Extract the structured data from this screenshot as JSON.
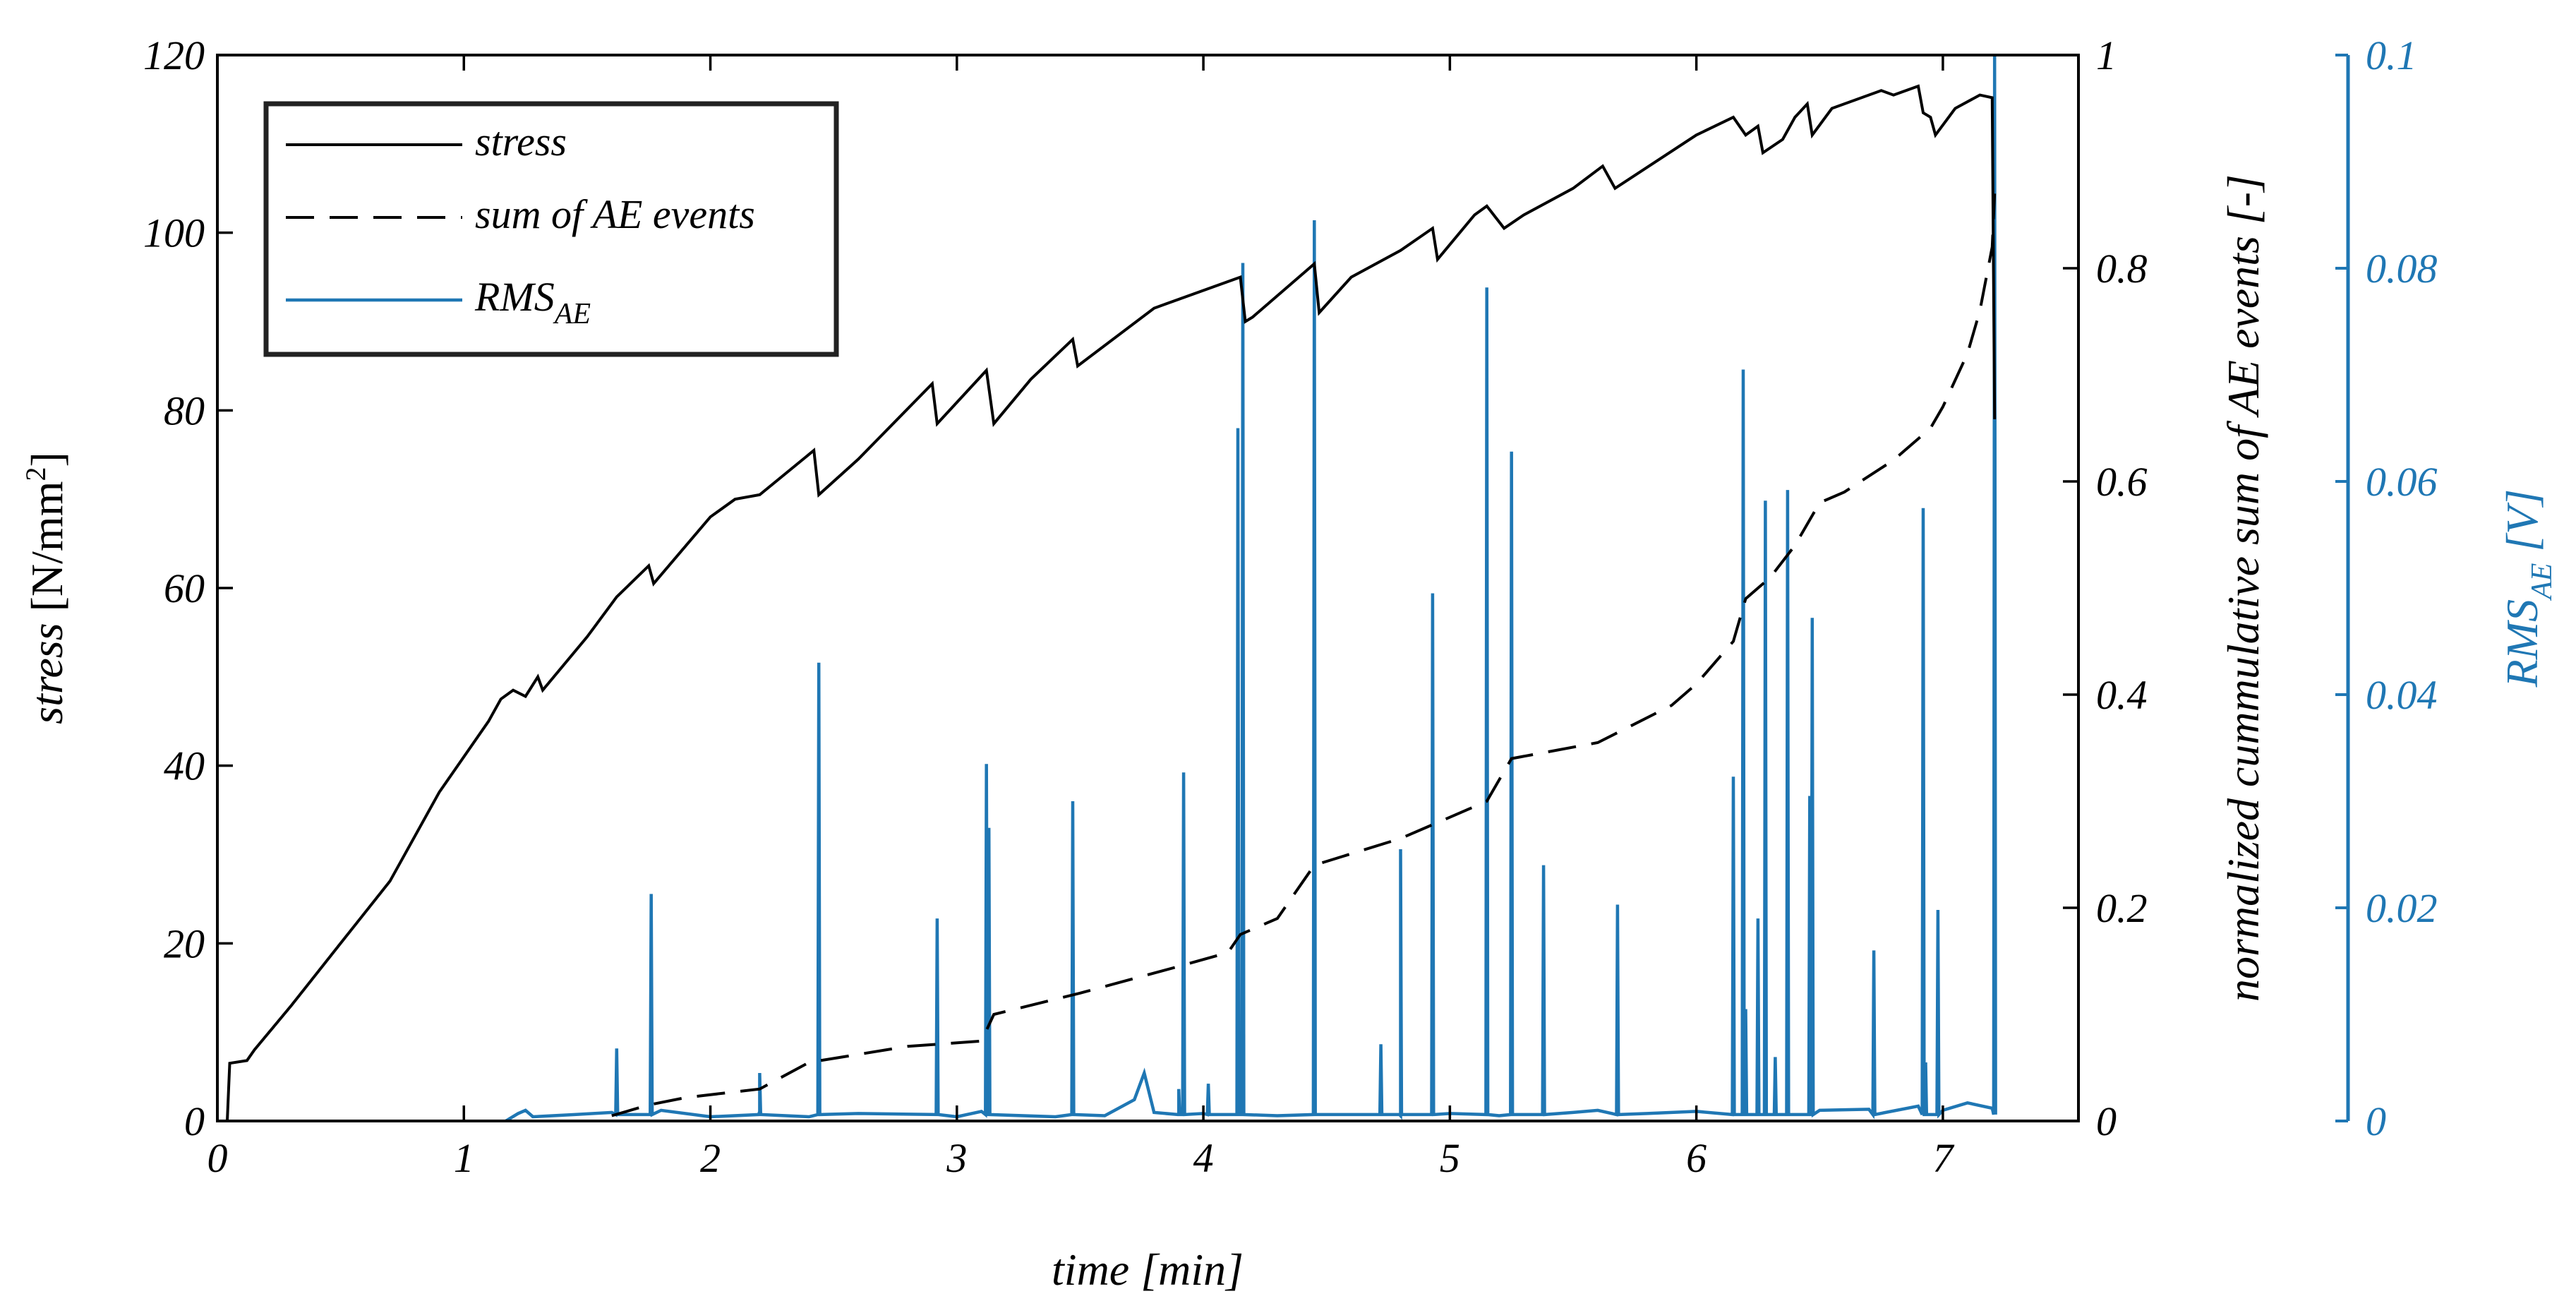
{
  "chart_data": {
    "type": "line",
    "title": "",
    "xlabel": "time [min]",
    "x_ticks": [
      0,
      1,
      2,
      3,
      4,
      5,
      6,
      7
    ],
    "xlim": [
      0,
      7.55
    ],
    "y_left": {
      "label_main": "stress ",
      "label_unit": "[N/mm",
      "label_sup": "2",
      "label_end": "]",
      "ylim": [
        0,
        120
      ],
      "ticks": [
        0,
        20,
        40,
        60,
        80,
        100,
        120
      ]
    },
    "y_right": {
      "label": "normalized cummulative sum of AE events [-]",
      "ylim": [
        0,
        1
      ],
      "ticks": [
        "0",
        "0.2",
        "0.4",
        "0.6",
        "0.8",
        "1"
      ]
    },
    "y_right2": {
      "label_main": "RMS",
      "label_sub": "AE",
      "label_unit": "  [V]",
      "ylim": [
        0,
        0.1
      ],
      "ticks": [
        "0",
        "0.02",
        "0.04",
        "0.06",
        "0.08",
        "0.1"
      ],
      "color": "#1f77b4"
    },
    "legend": {
      "position": "top-left",
      "entries": [
        {
          "label": "stress",
          "style": "solid"
        },
        {
          "label": "sum of AE events",
          "style": "dashed"
        },
        {
          "label_main": "RMS",
          "label_sub": "AE",
          "style": "solid",
          "color": "#1f77b4"
        }
      ]
    },
    "series": [
      {
        "name": "stress",
        "axis": "left",
        "style": "solid",
        "color": "#000000",
        "points": [
          [
            0.04,
            0
          ],
          [
            0.05,
            6.5
          ],
          [
            0.12,
            6.8
          ],
          [
            0.15,
            8
          ],
          [
            0.3,
            13
          ],
          [
            0.5,
            20
          ],
          [
            0.7,
            27
          ],
          [
            0.9,
            37
          ],
          [
            1.1,
            45
          ],
          [
            1.15,
            47.5
          ],
          [
            1.2,
            48.5
          ],
          [
            1.25,
            47.8
          ],
          [
            1.3,
            50
          ],
          [
            1.32,
            48.5
          ],
          [
            1.5,
            54.5
          ],
          [
            1.62,
            59
          ],
          [
            1.75,
            62.5
          ],
          [
            1.77,
            60.5
          ],
          [
            2.0,
            68
          ],
          [
            2.1,
            70
          ],
          [
            2.2,
            70.5
          ],
          [
            2.42,
            75.5
          ],
          [
            2.44,
            70.5
          ],
          [
            2.6,
            74.5
          ],
          [
            2.9,
            83
          ],
          [
            2.92,
            78.5
          ],
          [
            3.12,
            84.5
          ],
          [
            3.15,
            78.5
          ],
          [
            3.3,
            83.5
          ],
          [
            3.47,
            88
          ],
          [
            3.49,
            85
          ],
          [
            3.8,
            91.5
          ],
          [
            4.1,
            94.5
          ],
          [
            4.15,
            95
          ],
          [
            4.17,
            90
          ],
          [
            4.2,
            90.5
          ],
          [
            4.45,
            96.5
          ],
          [
            4.47,
            91
          ],
          [
            4.6,
            95
          ],
          [
            4.8,
            98
          ],
          [
            4.93,
            100.5
          ],
          [
            4.95,
            97
          ],
          [
            5.1,
            102
          ],
          [
            5.15,
            103
          ],
          [
            5.22,
            100.5
          ],
          [
            5.3,
            102
          ],
          [
            5.5,
            105
          ],
          [
            5.62,
            107.5
          ],
          [
            5.67,
            105
          ],
          [
            6.0,
            111
          ],
          [
            6.15,
            113
          ],
          [
            6.2,
            111
          ],
          [
            6.25,
            112
          ],
          [
            6.27,
            109
          ],
          [
            6.35,
            110.5
          ],
          [
            6.4,
            113
          ],
          [
            6.45,
            114.5
          ],
          [
            6.47,
            111
          ],
          [
            6.55,
            114
          ],
          [
            6.75,
            116
          ],
          [
            6.8,
            115.5
          ],
          [
            6.9,
            116.5
          ],
          [
            6.92,
            113.5
          ],
          [
            6.95,
            113
          ],
          [
            6.97,
            111
          ],
          [
            7.05,
            114
          ],
          [
            7.15,
            115.5
          ],
          [
            7.2,
            115.2
          ],
          [
            7.21,
            79
          ]
        ]
      },
      {
        "name": "sum of AE events",
        "axis": "right",
        "style": "dashed",
        "color": "#000000",
        "points": [
          [
            1.6,
            0.005
          ],
          [
            1.75,
            0.015
          ],
          [
            1.9,
            0.022
          ],
          [
            2.2,
            0.03
          ],
          [
            2.4,
            0.055
          ],
          [
            2.8,
            0.07
          ],
          [
            3.1,
            0.075
          ],
          [
            3.15,
            0.1
          ],
          [
            3.5,
            0.12
          ],
          [
            3.9,
            0.145
          ],
          [
            4.1,
            0.158
          ],
          [
            4.15,
            0.175
          ],
          [
            4.3,
            0.19
          ],
          [
            4.45,
            0.24
          ],
          [
            4.8,
            0.265
          ],
          [
            5.0,
            0.285
          ],
          [
            5.15,
            0.3
          ],
          [
            5.25,
            0.34
          ],
          [
            5.6,
            0.355
          ],
          [
            5.9,
            0.39
          ],
          [
            6.0,
            0.41
          ],
          [
            6.15,
            0.45
          ],
          [
            6.2,
            0.49
          ],
          [
            6.3,
            0.51
          ],
          [
            6.4,
            0.54
          ],
          [
            6.5,
            0.58
          ],
          [
            6.6,
            0.59
          ],
          [
            6.8,
            0.62
          ],
          [
            6.95,
            0.65
          ],
          [
            7.0,
            0.67
          ],
          [
            7.1,
            0.72
          ],
          [
            7.15,
            0.76
          ],
          [
            7.2,
            0.82
          ],
          [
            7.21,
            0.87
          ]
        ]
      },
      {
        "name": "RMS_AE",
        "axis": "right2",
        "style": "solid",
        "color": "#1f77b4",
        "baseline": [
          [
            1.17,
            0.0
          ],
          [
            1.22,
            0.0007
          ],
          [
            1.25,
            0.001
          ],
          [
            1.28,
            0.0004
          ],
          [
            1.45,
            0.0006
          ],
          [
            1.6,
            0.0008
          ],
          [
            1.8,
            0.001
          ],
          [
            2.0,
            0.0004
          ],
          [
            2.2,
            0.0009
          ],
          [
            2.4,
            0.0004
          ],
          [
            2.6,
            0.0007
          ],
          [
            3.0,
            0.0004
          ],
          [
            3.1,
            0.0009
          ],
          [
            3.4,
            0.0004
          ],
          [
            3.6,
            0.0005
          ],
          [
            3.72,
            0.002
          ],
          [
            3.76,
            0.0045
          ],
          [
            3.8,
            0.0008
          ],
          [
            3.9,
            0.0006
          ],
          [
            4.0,
            0.0007
          ],
          [
            4.3,
            0.0005
          ],
          [
            4.6,
            0.0006
          ],
          [
            4.8,
            0.0005
          ],
          [
            5.0,
            0.0007
          ],
          [
            5.2,
            0.0005
          ],
          [
            5.5,
            0.0008
          ],
          [
            5.6,
            0.001
          ],
          [
            5.8,
            0.0007
          ],
          [
            6.0,
            0.0009
          ],
          [
            6.2,
            0.0012
          ],
          [
            6.5,
            0.001
          ],
          [
            6.7,
            0.0011
          ],
          [
            6.9,
            0.0014
          ],
          [
            7.0,
            0.001
          ],
          [
            7.1,
            0.0017
          ],
          [
            7.2,
            0.0012
          ]
        ],
        "spikes": [
          [
            1.62,
            0.0068
          ],
          [
            1.76,
            0.0213
          ],
          [
            2.2,
            0.0045
          ],
          [
            2.44,
            0.043
          ],
          [
            2.92,
            0.019
          ],
          [
            3.12,
            0.0335
          ],
          [
            3.13,
            0.0275
          ],
          [
            3.47,
            0.03
          ],
          [
            3.9,
            0.003
          ],
          [
            3.92,
            0.0327
          ],
          [
            4.02,
            0.0035
          ],
          [
            4.14,
            0.065
          ],
          [
            4.16,
            0.0805
          ],
          [
            4.45,
            0.0845
          ],
          [
            4.72,
            0.0072
          ],
          [
            4.8,
            0.0255
          ],
          [
            4.93,
            0.0495
          ],
          [
            5.15,
            0.0782
          ],
          [
            5.25,
            0.0628
          ],
          [
            5.38,
            0.024
          ],
          [
            5.68,
            0.0203
          ],
          [
            6.15,
            0.0323
          ],
          [
            6.19,
            0.0705
          ],
          [
            6.2,
            0.0105
          ],
          [
            6.25,
            0.019
          ],
          [
            6.28,
            0.0582
          ],
          [
            6.32,
            0.006
          ],
          [
            6.37,
            0.0592
          ],
          [
            6.46,
            0.0305
          ],
          [
            6.47,
            0.0472
          ],
          [
            6.72,
            0.016
          ],
          [
            6.92,
            0.0575
          ],
          [
            6.93,
            0.0055
          ],
          [
            6.98,
            0.0198
          ],
          [
            7.21,
            0.1
          ]
        ]
      }
    ]
  }
}
